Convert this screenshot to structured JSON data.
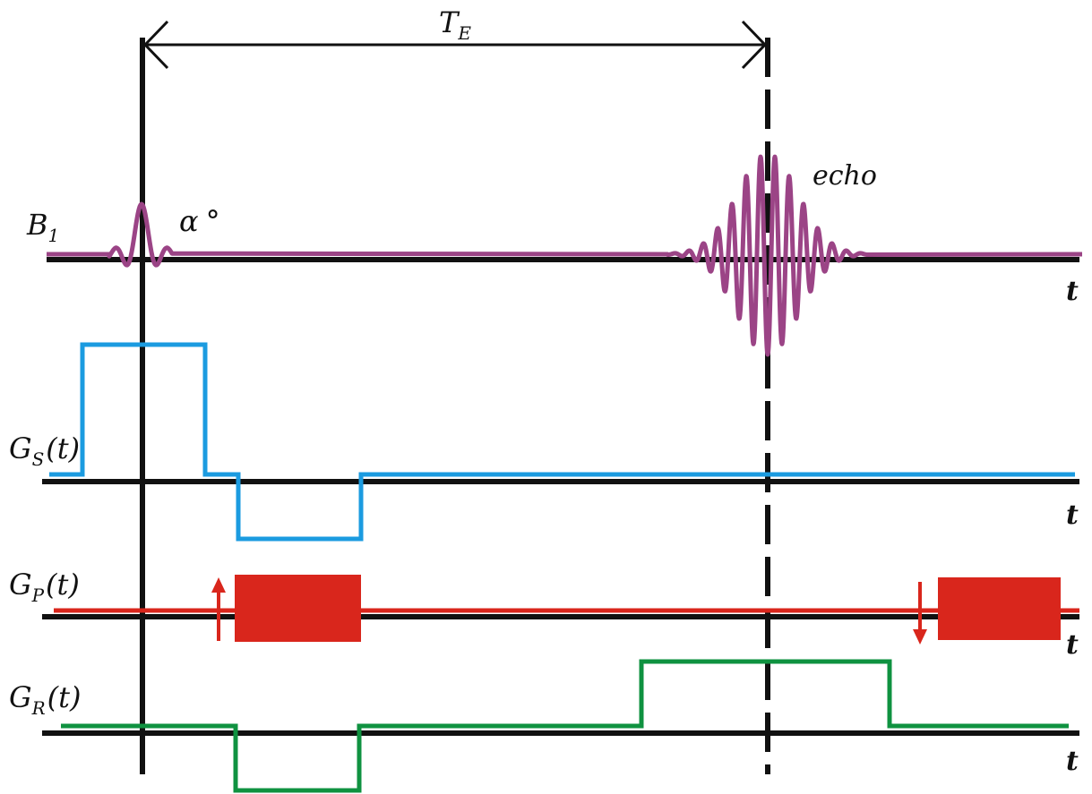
{
  "labels": {
    "te_main": "T",
    "te_sub": "E",
    "echo": "echo",
    "alpha": "α",
    "degree": "°",
    "b1_main": "B",
    "b1_sub": "1",
    "gs_main": "G",
    "gs_sub": "S",
    "gs_arg": "(t)",
    "gp_main": "G",
    "gp_sub": "P",
    "gp_arg": "(t)",
    "gr_main": "G",
    "gr_sub": "R",
    "gr_arg": "(t)",
    "time_axis": "t"
  },
  "colors": {
    "axis": "#111111",
    "rf": "#9b4486",
    "slice": "#1b9be0",
    "phase": "#d9261c",
    "readout": "#0f9240"
  }
}
